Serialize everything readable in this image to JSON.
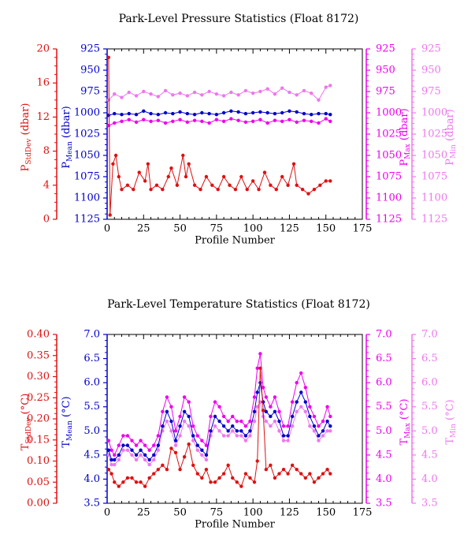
{
  "colors": {
    "stddev": "#dd1111",
    "mean": "#0000cc",
    "max": "#ee00ee",
    "min": "#ee77ee",
    "frame": "#000000"
  },
  "chart_data": [
    {
      "type": "line",
      "title": "Park-Level Pressure Statistics (Float 8172)",
      "xlabel": "Profile Number",
      "xlim": [
        0,
        175
      ],
      "xticks": [
        "0",
        "25",
        "50",
        "75",
        "100",
        "125",
        "150",
        "175"
      ],
      "axes": {
        "stddev": {
          "label": "P",
          "sub": "StdDev",
          "unit": " (dbar)",
          "lim": [
            0,
            20
          ],
          "ticks": [
            "0",
            "4",
            "8",
            "12",
            "16",
            "20"
          ]
        },
        "mean": {
          "label": "P",
          "sub": "Mean",
          "unit": " (dbar)",
          "lim": [
            1125,
            925
          ],
          "inverted": true,
          "ticks": [
            "1125",
            "1100",
            "1075",
            "1050",
            "1025",
            "1000",
            "975",
            "950",
            "925"
          ]
        },
        "max": {
          "label": "P",
          "sub": "Max",
          "unit": " (dbar)",
          "lim": [
            1125,
            925
          ],
          "inverted": true,
          "ticks": [
            "1125",
            "1100",
            "1075",
            "1050",
            "1025",
            "1000",
            "975",
            "950",
            "925"
          ]
        },
        "min": {
          "label": "P",
          "sub": "Min",
          "unit": " (dbar)",
          "lim": [
            1125,
            925
          ],
          "inverted": true,
          "ticks": [
            "1125",
            "1100",
            "1075",
            "1050",
            "1025",
            "1000",
            "975",
            "950",
            "925"
          ]
        }
      },
      "series": [
        {
          "key": "stddev",
          "x": [
            1,
            2,
            4,
            6,
            8,
            10,
            14,
            18,
            22,
            26,
            28,
            30,
            34,
            38,
            42,
            44,
            48,
            52,
            54,
            56,
            60,
            64,
            68,
            72,
            76,
            80,
            84,
            88,
            92,
            96,
            100,
            104,
            108,
            112,
            116,
            120,
            124,
            128,
            130,
            134,
            138,
            142,
            146,
            150,
            153
          ],
          "values": [
            19,
            0.5,
            6.5,
            7.5,
            5,
            3.5,
            4,
            3.5,
            5.5,
            4.5,
            6.5,
            3.5,
            4,
            3.5,
            5,
            6,
            4,
            7.5,
            5,
            6.5,
            4,
            3.5,
            5,
            4,
            3.5,
            5,
            4,
            3.5,
            5,
            3.5,
            4.5,
            3.5,
            5.5,
            4,
            3.5,
            5,
            4,
            6.5,
            4,
            3.5,
            3,
            3.5,
            4,
            4.5,
            4.5
          ]
        },
        {
          "key": "mean",
          "x": [
            1,
            5,
            10,
            15,
            20,
            25,
            30,
            35,
            40,
            45,
            50,
            55,
            60,
            65,
            70,
            75,
            80,
            85,
            90,
            95,
            100,
            105,
            110,
            115,
            120,
            125,
            130,
            135,
            140,
            145,
            150,
            153
          ],
          "values": [
            1003,
            1001,
            1002,
            1001,
            1002,
            998,
            1001,
            1002,
            1000,
            1001,
            999,
            1001,
            1002,
            1000,
            1001,
            1002,
            1000,
            998,
            999,
            1001,
            1000,
            999,
            1000,
            1001,
            1000,
            998,
            999,
            1001,
            1002,
            1001,
            1001,
            1002
          ]
        },
        {
          "key": "max",
          "x": [
            1,
            5,
            10,
            15,
            20,
            25,
            30,
            35,
            40,
            45,
            50,
            55,
            60,
            65,
            70,
            75,
            80,
            85,
            90,
            95,
            100,
            105,
            110,
            115,
            120,
            125,
            130,
            135,
            140,
            145,
            150,
            153
          ],
          "values": [
            1015,
            1012,
            1010,
            1008,
            1011,
            1008,
            1010,
            1009,
            1012,
            1010,
            1008,
            1011,
            1009,
            1010,
            1012,
            1008,
            1010,
            1007,
            1009,
            1011,
            1010,
            1008,
            1012,
            1009,
            1010,
            1008,
            1011,
            1009,
            1010,
            1012,
            1007,
            1010
          ]
        },
        {
          "key": "min",
          "x": [
            1,
            5,
            10,
            15,
            20,
            25,
            30,
            35,
            40,
            45,
            50,
            55,
            60,
            65,
            70,
            75,
            80,
            85,
            90,
            95,
            100,
            105,
            110,
            115,
            120,
            125,
            130,
            135,
            140,
            145,
            150,
            153
          ],
          "values": [
            985,
            978,
            982,
            976,
            980,
            975,
            978,
            981,
            974,
            979,
            977,
            980,
            976,
            979,
            975,
            978,
            980,
            976,
            979,
            974,
            977,
            975,
            972,
            978,
            971,
            976,
            979,
            974,
            977,
            985,
            970,
            968
          ]
        }
      ]
    },
    {
      "type": "line",
      "title": "Park-Level Temperature Statistics (Float 8172)",
      "xlabel": "Profile Number",
      "xlim": [
        0,
        175
      ],
      "xticks": [
        "0",
        "25",
        "50",
        "75",
        "100",
        "125",
        "150",
        "175"
      ],
      "axes": {
        "stddev": {
          "label": "T",
          "sub": "StdDev",
          "unit": " (°C)",
          "lim": [
            0,
            0.4
          ],
          "ticks": [
            "0.00",
            "0.05",
            "0.10",
            "0.15",
            "0.20",
            "0.25",
            "0.30",
            "0.35",
            "0.40"
          ]
        },
        "mean": {
          "label": "T",
          "sub": "Mean",
          "unit": " (°C)",
          "lim": [
            3.5,
            7.0
          ],
          "ticks": [
            "3.5",
            "4.0",
            "4.5",
            "5.0",
            "5.5",
            "6.0",
            "6.5",
            "7.0"
          ]
        },
        "max": {
          "label": "T",
          "sub": "Max",
          "unit": " (°C)",
          "lim": [
            3.5,
            7.0
          ],
          "ticks": [
            "3.5",
            "4.0",
            "4.5",
            "5.0",
            "5.5",
            "6.0",
            "6.5",
            "7.0"
          ]
        },
        "min": {
          "label": "T",
          "sub": "Min",
          "unit": " (°C)",
          "lim": [
            3.5,
            7.0
          ],
          "ticks": [
            "3.5",
            "4.0",
            "4.5",
            "5.0",
            "5.5",
            "6.0",
            "6.5",
            "7.0"
          ]
        }
      },
      "series": [
        {
          "key": "stddev",
          "x": [
            1,
            3,
            5,
            8,
            11,
            14,
            17,
            20,
            23,
            26,
            29,
            32,
            35,
            38,
            41,
            44,
            47,
            50,
            53,
            56,
            59,
            62,
            65,
            68,
            71,
            74,
            77,
            80,
            83,
            86,
            89,
            92,
            95,
            98,
            101,
            103,
            105,
            107,
            109,
            112,
            115,
            118,
            121,
            124,
            127,
            130,
            133,
            136,
            139,
            142,
            145,
            148,
            151,
            153
          ],
          "values": [
            0.08,
            0.07,
            0.05,
            0.04,
            0.05,
            0.06,
            0.06,
            0.05,
            0.05,
            0.04,
            0.06,
            0.07,
            0.08,
            0.09,
            0.08,
            0.13,
            0.12,
            0.08,
            0.11,
            0.14,
            0.09,
            0.07,
            0.06,
            0.08,
            0.05,
            0.05,
            0.06,
            0.07,
            0.09,
            0.06,
            0.05,
            0.04,
            0.07,
            0.06,
            0.05,
            0.1,
            0.32,
            0.22,
            0.08,
            0.09,
            0.06,
            0.07,
            0.08,
            0.07,
            0.09,
            0.08,
            0.07,
            0.06,
            0.07,
            0.05,
            0.06,
            0.07,
            0.08,
            0.07
          ]
        },
        {
          "key": "mean",
          "x": [
            1,
            3,
            5,
            8,
            11,
            14,
            17,
            20,
            23,
            26,
            29,
            32,
            35,
            38,
            41,
            44,
            47,
            50,
            53,
            56,
            59,
            62,
            65,
            68,
            71,
            74,
            77,
            80,
            83,
            86,
            89,
            92,
            95,
            98,
            101,
            103,
            105,
            107,
            109,
            112,
            115,
            118,
            121,
            124,
            127,
            130,
            133,
            136,
            139,
            142,
            145,
            148,
            151,
            153
          ],
          "values": [
            4.6,
            4.4,
            4.4,
            4.5,
            4.7,
            4.7,
            4.6,
            4.5,
            4.6,
            4.5,
            4.4,
            4.5,
            4.7,
            5.1,
            5.4,
            5.2,
            4.8,
            5.1,
            5.4,
            5.3,
            4.9,
            4.7,
            4.6,
            4.5,
            5.0,
            5.3,
            5.2,
            5.1,
            5.0,
            5.1,
            5.0,
            5.0,
            4.9,
            5.0,
            5.4,
            5.8,
            6.0,
            5.6,
            5.4,
            5.3,
            5.4,
            5.2,
            4.9,
            4.9,
            5.3,
            5.6,
            5.8,
            5.6,
            5.3,
            5.1,
            4.9,
            5.0,
            5.2,
            5.1
          ]
        },
        {
          "key": "max",
          "x": [
            1,
            3,
            5,
            8,
            11,
            14,
            17,
            20,
            23,
            26,
            29,
            32,
            35,
            38,
            41,
            44,
            47,
            50,
            53,
            56,
            59,
            62,
            65,
            68,
            71,
            74,
            77,
            80,
            83,
            86,
            89,
            92,
            95,
            98,
            101,
            103,
            105,
            107,
            109,
            112,
            115,
            118,
            121,
            124,
            127,
            130,
            133,
            136,
            139,
            142,
            145,
            148,
            151,
            153
          ],
          "values": [
            4.8,
            4.6,
            4.5,
            4.7,
            4.9,
            4.9,
            4.8,
            4.7,
            4.8,
            4.7,
            4.6,
            4.7,
            4.9,
            5.4,
            5.7,
            5.5,
            5.0,
            5.3,
            5.7,
            5.6,
            5.1,
            4.9,
            4.8,
            4.7,
            5.3,
            5.6,
            5.5,
            5.3,
            5.2,
            5.3,
            5.2,
            5.2,
            5.1,
            5.2,
            5.7,
            6.3,
            6.6,
            5.9,
            5.7,
            5.5,
            5.7,
            5.4,
            5.1,
            5.1,
            5.6,
            6.0,
            6.2,
            5.9,
            5.5,
            5.3,
            5.1,
            5.2,
            5.5,
            5.3
          ]
        },
        {
          "key": "min",
          "x": [
            1,
            3,
            5,
            8,
            11,
            14,
            17,
            20,
            23,
            26,
            29,
            32,
            35,
            38,
            41,
            44,
            47,
            50,
            53,
            56,
            59,
            62,
            65,
            68,
            71,
            74,
            77,
            80,
            83,
            86,
            89,
            92,
            95,
            98,
            101,
            103,
            105,
            107,
            109,
            112,
            115,
            118,
            121,
            124,
            127,
            130,
            133,
            136,
            139,
            142,
            145,
            148,
            151,
            153
          ],
          "values": [
            4.5,
            4.3,
            4.3,
            4.4,
            4.6,
            4.6,
            4.5,
            4.4,
            4.5,
            4.4,
            4.3,
            4.4,
            4.6,
            5.0,
            5.2,
            5.0,
            4.7,
            4.9,
            5.2,
            5.1,
            4.8,
            4.6,
            4.5,
            4.4,
            4.9,
            5.1,
            5.0,
            4.9,
            4.9,
            5.0,
            4.9,
            4.9,
            4.8,
            4.9,
            5.2,
            5.5,
            5.6,
            5.3,
            5.2,
            5.1,
            5.2,
            5.0,
            4.8,
            4.8,
            5.1,
            5.4,
            5.5,
            5.4,
            5.1,
            5.0,
            4.8,
            4.9,
            5.0,
            5.0
          ]
        }
      ]
    }
  ]
}
